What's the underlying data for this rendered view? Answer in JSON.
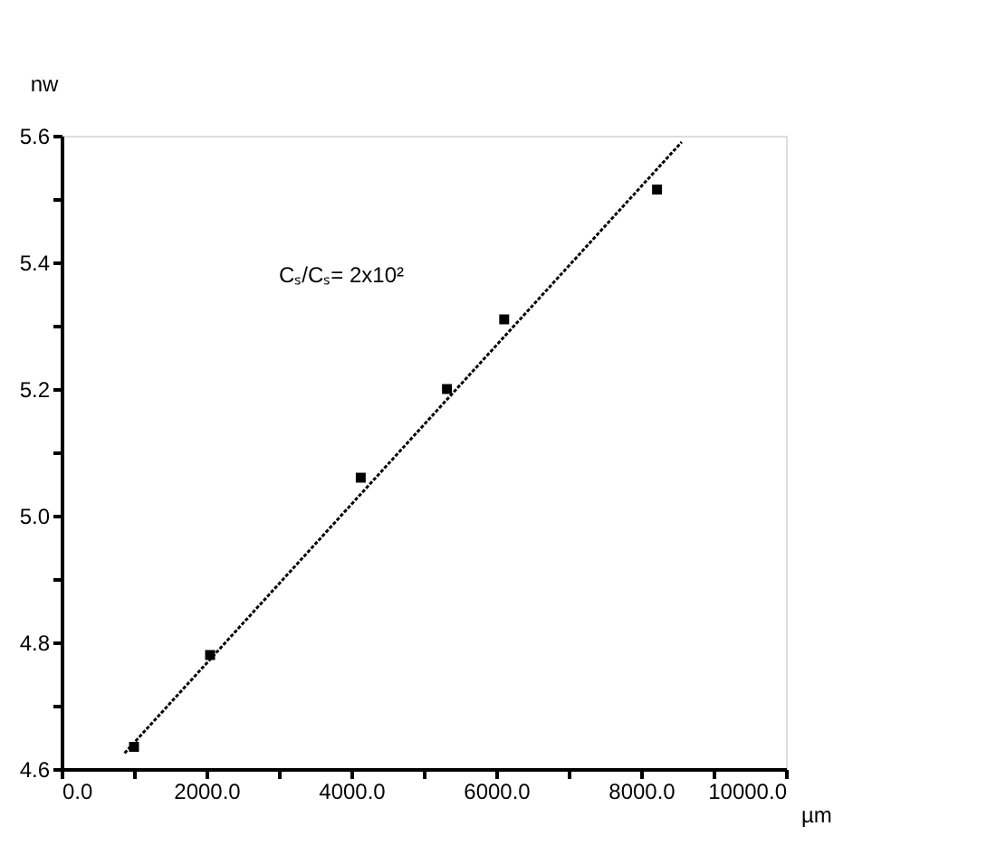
{
  "chart_data": {
    "type": "scatter",
    "xlabel": "µm",
    "ylabel": "nw",
    "annotations": [
      "Cₛ/Cₛ= 2x10²"
    ],
    "series": [
      {
        "color": "#000000",
        "marker": "square",
        "x": [
          1000,
          2050,
          4130,
          5320,
          6110,
          8220
        ],
        "values": [
          4.635,
          4.78,
          5.06,
          5.2,
          5.31,
          5.515
        ]
      },
      {
        "type": "line",
        "color": "#000000",
        "marker": "none",
        "line_style": "dotted",
        "x": [
          870,
          8560
        ],
        "values": [
          4.625,
          5.59
        ]
      }
    ],
    "xlim": [
      0,
      10000
    ],
    "ylim": [
      4.6,
      5.6
    ],
    "xticks": [
      {
        "value": 0,
        "label": "0.0"
      },
      {
        "value": 1000,
        "label": null
      },
      {
        "value": 2000,
        "label": "2000.0"
      },
      {
        "value": 3000,
        "label": null
      },
      {
        "value": 4000,
        "label": "4000.0"
      },
      {
        "value": 5000,
        "label": null
      },
      {
        "value": 6000,
        "label": "6000.0"
      },
      {
        "value": 7000,
        "label": null
      },
      {
        "value": 8000,
        "label": "8000.0"
      },
      {
        "value": 9000,
        "label": null
      },
      {
        "value": 10000,
        "label": "10000.0"
      }
    ],
    "yticks": [
      {
        "value": 4.6,
        "label": "4.6"
      },
      {
        "value": 4.7,
        "label": null
      },
      {
        "value": 4.8,
        "label": "4.8"
      },
      {
        "value": 4.9,
        "label": null
      },
      {
        "value": 5.0,
        "label": "5.0"
      },
      {
        "value": 5.1,
        "label": null
      },
      {
        "value": 5.2,
        "label": "5.2"
      },
      {
        "value": 5.3,
        "label": null
      },
      {
        "value": 5.4,
        "label": "5.4"
      },
      {
        "value": 5.5,
        "label": null
      },
      {
        "value": 5.6,
        "label": "5.6"
      }
    ],
    "grid": false,
    "legend": false
  }
}
